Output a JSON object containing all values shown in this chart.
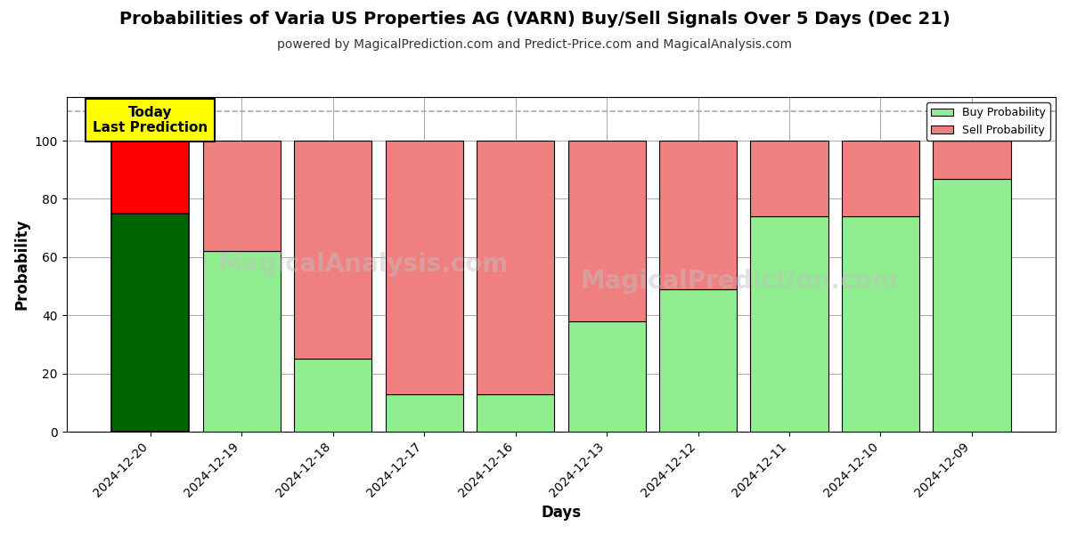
{
  "title": "Probabilities of Varia US Properties AG (VARN) Buy/Sell Signals Over 5 Days (Dec 21)",
  "subtitle": "powered by MagicalPrediction.com and Predict-Price.com and MagicalAnalysis.com",
  "xlabel": "Days",
  "ylabel": "Probability",
  "dates": [
    "2024-12-20",
    "2024-12-19",
    "2024-12-18",
    "2024-12-17",
    "2024-12-16",
    "2024-12-13",
    "2024-12-12",
    "2024-12-11",
    "2024-12-10",
    "2024-12-09"
  ],
  "buy_values": [
    75,
    62,
    25,
    13,
    13,
    38,
    49,
    74,
    74,
    87
  ],
  "sell_values": [
    25,
    38,
    75,
    87,
    87,
    62,
    51,
    26,
    26,
    13
  ],
  "buy_color_today": "#006400",
  "sell_color_today": "#ff0000",
  "buy_color_normal": "#90ee90",
  "sell_color_normal": "#f08080",
  "today_annotation_text": "Today\nLast Prediction",
  "today_annotation_bg": "#ffff00",
  "today_annotation_border": "#000000",
  "legend_buy": "Buy Probability",
  "legend_sell": "Sell Probability",
  "ylim": [
    0,
    115
  ],
  "dashed_line_y": 110,
  "watermark_color": "#c0c0c0",
  "title_fontsize": 14,
  "subtitle_fontsize": 10,
  "axis_label_fontsize": 12,
  "tick_fontsize": 10,
  "background_color": "#ffffff",
  "grid_color": "#aaaaaa"
}
